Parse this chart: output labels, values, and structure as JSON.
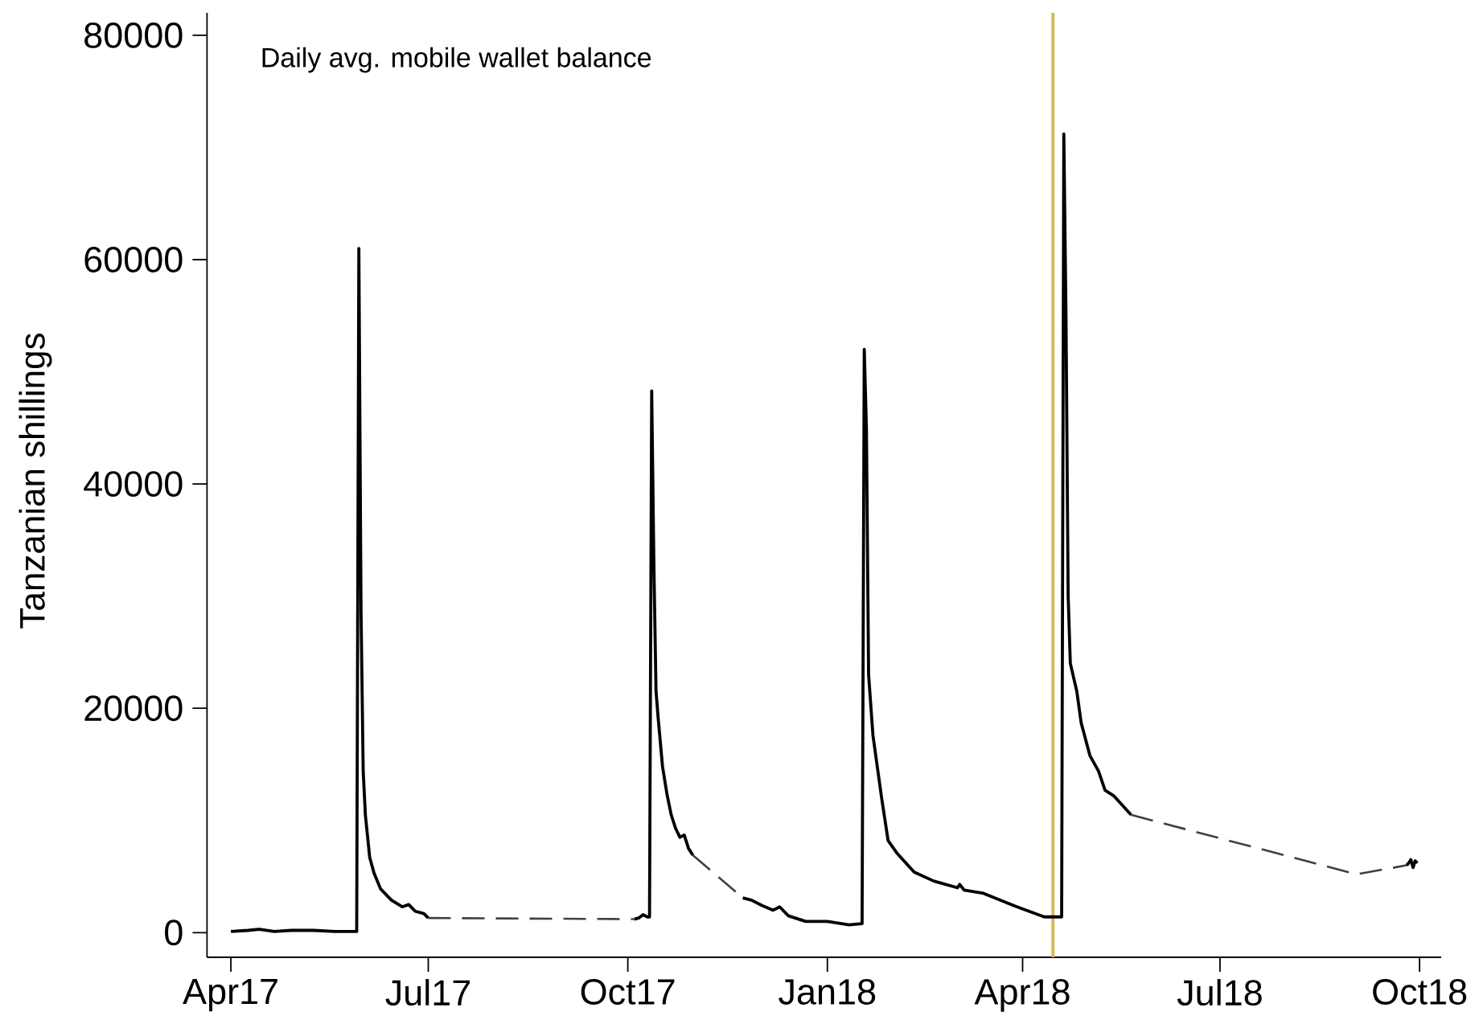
{
  "chart_data": {
    "type": "line",
    "title": "Daily avg. mobile wallet balance",
    "ylabel": "Tanzanian shillings",
    "xlim": [
      "2017-03-21",
      "2018-10-11"
    ],
    "ylim": [
      -2200,
      82000
    ],
    "xticks": [
      {
        "value": "2017-04-01",
        "label": "Apr17"
      },
      {
        "value": "2017-07-01",
        "label": "Jul17"
      },
      {
        "value": "2017-10-01",
        "label": "Oct17"
      },
      {
        "value": "2018-01-01",
        "label": "Jan18"
      },
      {
        "value": "2018-04-01",
        "label": "Apr18"
      },
      {
        "value": "2018-07-01",
        "label": "Jul18"
      },
      {
        "value": "2018-10-01",
        "label": "Oct18"
      }
    ],
    "yticks": [
      0,
      20000,
      40000,
      60000,
      80000
    ],
    "marker": "none",
    "ref_lines": [
      {
        "axis": "x",
        "value": "2018-04-15",
        "color": "#d8b95a"
      }
    ],
    "series": [
      {
        "color": "#000000",
        "line_style": "solid",
        "x": [
          "2017-04-01",
          "2017-04-09",
          "2017-04-14",
          "2017-04-21",
          "2017-04-29",
          "2017-05-09",
          "2017-05-19",
          "2017-05-29",
          "2017-05-30",
          "2017-05-31",
          "2017-06-01",
          "2017-06-02",
          "2017-06-04",
          "2017-06-06",
          "2017-06-09",
          "2017-06-14",
          "2017-06-19",
          "2017-06-22",
          "2017-06-25",
          "2017-06-29",
          "2017-07-01",
          "2017-08-15",
          "2017-10-04",
          "2017-10-06",
          "2017-10-08",
          "2017-10-10",
          "2017-10-11",
          "2017-10-12",
          "2017-10-13",
          "2017-10-14",
          "2017-10-15",
          "2017-10-17",
          "2017-10-19",
          "2017-10-21",
          "2017-10-23",
          "2017-10-25",
          "2017-10-27",
          "2017-10-29",
          "2017-10-31",
          "2017-11-10",
          "2017-11-23",
          "2017-11-27",
          "2017-12-02",
          "2017-12-07",
          "2017-12-10",
          "2017-12-14",
          "2017-12-22",
          "2018-01-01",
          "2018-01-11",
          "2018-01-17",
          "2018-01-18",
          "2018-01-19",
          "2018-01-20",
          "2018-01-22",
          "2018-01-26",
          "2018-01-29",
          "2018-02-02",
          "2018-02-10",
          "2018-02-19",
          "2018-03-02",
          "2018-03-03",
          "2018-03-05",
          "2018-03-14",
          "2018-03-28",
          "2018-04-11",
          "2018-04-17",
          "2018-04-19",
          "2018-04-20",
          "2018-04-21",
          "2018-04-22",
          "2018-04-23",
          "2018-04-26",
          "2018-04-28",
          "2018-05-02",
          "2018-05-06",
          "2018-05-09",
          "2018-05-13",
          "2018-05-21",
          "2018-07-15",
          "2018-09-25",
          "2018-09-26",
          "2018-09-27",
          "2018-09-28",
          "2018-09-29",
          "2018-09-30"
        ],
        "values": [
          100,
          200,
          300,
          100,
          200,
          200,
          100,
          100,
          61000,
          28700,
          14400,
          10500,
          6700,
          5300,
          3900,
          2900,
          2300,
          2500,
          1900,
          1700,
          1300,
          null,
          1200,
          1300,
          1600,
          1400,
          1400,
          48300,
          33000,
          21500,
          19100,
          14800,
          12400,
          10500,
          9300,
          8500,
          8700,
          7500,
          6900,
          null,
          3100,
          2900,
          2400,
          2000,
          2300,
          1500,
          1000,
          1000,
          700,
          800,
          52000,
          45000,
          23000,
          17600,
          12000,
          8200,
          7100,
          5400,
          4600,
          4000,
          4300,
          3800,
          3500,
          2400,
          1400,
          1400,
          1400,
          71200,
          55000,
          30000,
          24000,
          21500,
          18700,
          15800,
          14400,
          12700,
          12200,
          10500,
          null,
          6000,
          6200,
          6500,
          5800,
          6400,
          6200
        ]
      },
      {
        "color": "#404040",
        "line_style": "dashed",
        "x": [
          "2017-07-01",
          "2017-10-04",
          "2017-10-15",
          "2017-10-31",
          "2017-11-23",
          "2018-01-01",
          "2018-05-21",
          "2018-09-02",
          "2018-09-25"
        ],
        "values": [
          1300,
          1200,
          null,
          6900,
          3100,
          null,
          10500,
          5200,
          6000
        ]
      }
    ]
  }
}
